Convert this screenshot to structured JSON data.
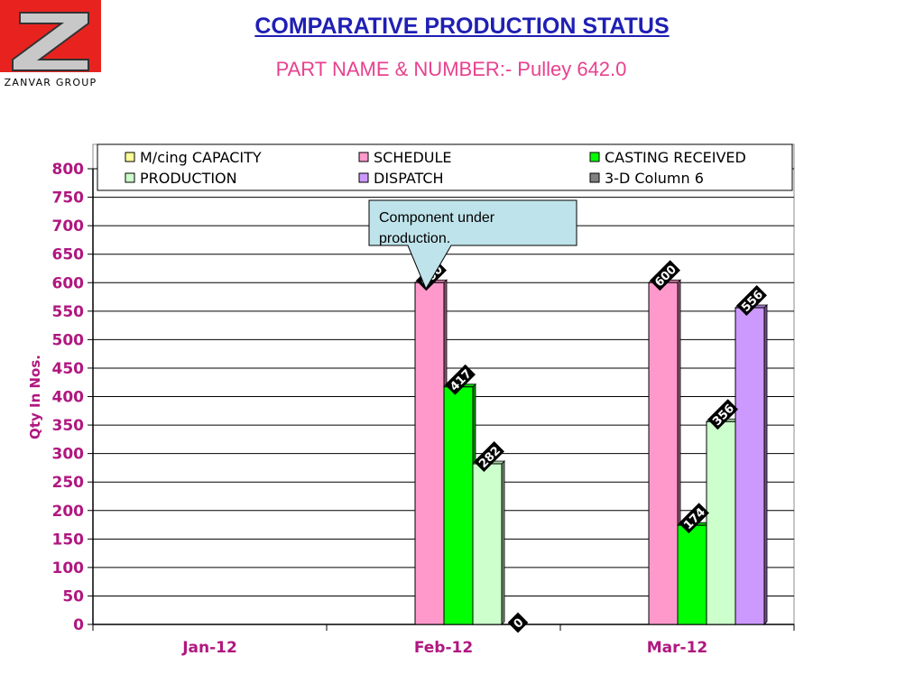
{
  "brand": {
    "name": "ZANVAR GROUP",
    "colors": {
      "bg": "#e8231f",
      "mark": "#ffffff"
    }
  },
  "header": {
    "title": "COMPARATIVE PRODUCTION STATUS",
    "subtitle": "PART NAME & NUMBER:- Pulley 642.0"
  },
  "annotation": {
    "text": "Component under production."
  },
  "chart_data": {
    "type": "bar",
    "ylabel": "Qty In  Nos.",
    "xlabel": "",
    "ylim": [
      0,
      800
    ],
    "yticks": [
      0,
      50,
      100,
      150,
      200,
      250,
      300,
      350,
      400,
      450,
      500,
      550,
      600,
      650,
      700,
      750,
      800
    ],
    "grid": true,
    "legend_position": "top",
    "categories": [
      "Jan-12",
      "Feb-12",
      "Mar-12"
    ],
    "series": [
      {
        "name": "M/cing CAPACITY",
        "color": "#ffff99",
        "values": [
          null,
          null,
          null
        ]
      },
      {
        "name": "SCHEDULE",
        "color": "#ff99cc",
        "values": [
          null,
          600,
          600
        ]
      },
      {
        "name": "CASTING RECEIVED",
        "color": "#00ff00",
        "values": [
          null,
          417,
          174
        ]
      },
      {
        "name": "PRODUCTION",
        "color": "#ccffcc",
        "values": [
          null,
          282,
          356
        ]
      },
      {
        "name": "DISPATCH",
        "color": "#cc99ff",
        "values": [
          null,
          0,
          556
        ]
      },
      {
        "name": "3-D Column 6",
        "color": "#808080",
        "values": [
          null,
          null,
          null
        ]
      }
    ]
  }
}
